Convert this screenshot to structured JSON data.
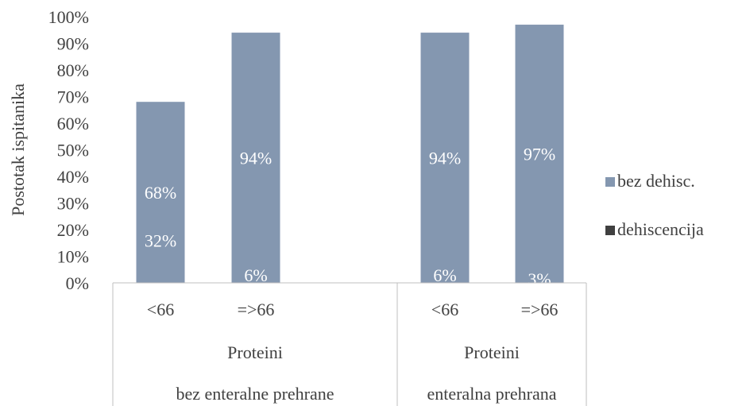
{
  "chart_data": {
    "type": "bar",
    "stacked": true,
    "percent_stacked": true,
    "ylabel": "Postotak ispitanika",
    "ylim": [
      0,
      100
    ],
    "y_ticks": [
      "0%",
      "10%",
      "20%",
      "30%",
      "40%",
      "50%",
      "60%",
      "70%",
      "80%",
      "90%",
      "100%"
    ],
    "grid": false,
    "legend_position": "right",
    "categories": [
      "<66",
      "=>66",
      "<66",
      "=>66"
    ],
    "group_labels": [
      {
        "level1": "Proteini",
        "level2": "bez enteralne prehrane"
      },
      {
        "level1": "Proteini",
        "level2": "enteralna prehrana"
      }
    ],
    "series": [
      {
        "name": "dehiscencija",
        "values": [
          32,
          6,
          6,
          3
        ],
        "labels": [
          "32%",
          "6%",
          "6%",
          "3%"
        ]
      },
      {
        "name": "bez dehisc.",
        "values": [
          68,
          94,
          94,
          97
        ],
        "labels": [
          "68%",
          "94%",
          "94%",
          "97%"
        ]
      }
    ],
    "colors": {
      "dehiscencija": "#404040",
      "bez dehisc.": "#8497B0",
      "axis": "#BFBFBF",
      "text": "#404040",
      "label": "#ffffff"
    }
  }
}
